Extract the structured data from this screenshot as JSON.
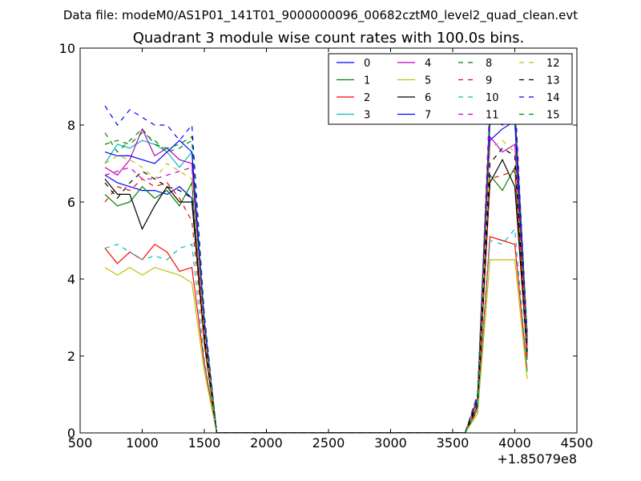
{
  "chart_data": {
    "type": "line",
    "suptitle": "Data file: modeM0/AS1P01_141T01_9000000096_00682cztM0_level2_quad_clean.evt",
    "title": "Quadrant 3 module wise count rates with 100.0s bins.",
    "xlabel": "",
    "ylabel": "",
    "x_offset_label": "+1.85079e8",
    "xlim": [
      500,
      4500
    ],
    "ylim": [
      0,
      10
    ],
    "xticks": [
      500,
      1000,
      1500,
      2000,
      2500,
      3000,
      3500,
      4000,
      4500
    ],
    "yticks": [
      0,
      2,
      4,
      6,
      8,
      10
    ],
    "x": [
      700,
      800,
      900,
      1000,
      1100,
      1200,
      1300,
      1400,
      1500,
      1600,
      1700,
      1800,
      1900,
      2000,
      2100,
      2200,
      2300,
      2400,
      2500,
      2600,
      2700,
      2800,
      2900,
      3000,
      3100,
      3200,
      3300,
      3400,
      3500,
      3600,
      3700,
      3800,
      3900,
      4000,
      4100
    ],
    "legend": {
      "location": "upper right",
      "columns": 4
    },
    "series": [
      {
        "name": "0",
        "color": "#0000ff",
        "dash": "solid",
        "values": [
          6.7,
          6.5,
          6.4,
          6.3,
          6.3,
          6.2,
          6.4,
          6.1,
          2.5,
          0,
          0,
          0,
          0,
          0,
          0,
          0,
          0,
          0,
          0,
          0,
          0,
          0,
          0,
          0,
          0,
          0,
          0,
          0,
          0,
          0,
          0.8,
          7.6,
          7.9,
          8.1,
          2.1
        ]
      },
      {
        "name": "1",
        "color": "#008000",
        "dash": "solid",
        "values": [
          6.2,
          5.9,
          6.0,
          6.4,
          6.1,
          6.3,
          5.9,
          6.5,
          2.3,
          0,
          0,
          0,
          0,
          0,
          0,
          0,
          0,
          0,
          0,
          0,
          0,
          0,
          0,
          0,
          0,
          0,
          0,
          0,
          0,
          0,
          0.6,
          6.7,
          6.3,
          6.9,
          1.9
        ]
      },
      {
        "name": "2",
        "color": "#ff0000",
        "dash": "solid",
        "values": [
          4.8,
          4.4,
          4.7,
          4.5,
          4.9,
          4.7,
          4.2,
          4.3,
          1.8,
          0,
          0,
          0,
          0,
          0,
          0,
          0,
          0,
          0,
          0,
          0,
          0,
          0,
          0,
          0,
          0,
          0,
          0,
          0,
          0,
          0,
          0.6,
          5.1,
          5.0,
          4.9,
          1.6
        ]
      },
      {
        "name": "3",
        "color": "#00bfbf",
        "dash": "solid",
        "values": [
          7.0,
          7.5,
          7.4,
          7.6,
          7.5,
          7.3,
          6.9,
          7.3,
          2.9,
          0,
          0,
          0,
          0,
          0,
          0,
          0,
          0,
          0,
          0,
          0,
          0,
          0,
          0,
          0,
          0,
          0,
          0,
          0,
          0,
          0,
          0.9,
          8.0,
          8.2,
          8.4,
          2.4
        ]
      },
      {
        "name": "4",
        "color": "#bf00bf",
        "dash": "solid",
        "values": [
          6.9,
          6.7,
          7.1,
          7.9,
          7.2,
          7.4,
          7.1,
          7.0,
          2.8,
          0,
          0,
          0,
          0,
          0,
          0,
          0,
          0,
          0,
          0,
          0,
          0,
          0,
          0,
          0,
          0,
          0,
          0,
          0,
          0,
          0,
          0.9,
          7.7,
          7.3,
          7.5,
          2.2
        ]
      },
      {
        "name": "5",
        "color": "#bfbf00",
        "dash": "solid",
        "values": [
          4.3,
          4.1,
          4.3,
          4.1,
          4.3,
          4.2,
          4.1,
          3.9,
          1.6,
          0,
          0,
          0,
          0,
          0,
          0,
          0,
          0,
          0,
          0,
          0,
          0,
          0,
          0,
          0,
          0,
          0,
          0,
          0,
          0,
          0,
          0.5,
          4.5,
          4.5,
          4.5,
          1.4
        ]
      },
      {
        "name": "6",
        "color": "#000000",
        "dash": "solid",
        "values": [
          6.6,
          6.2,
          6.2,
          5.3,
          5.9,
          6.4,
          6.0,
          6.0,
          2.4,
          0,
          0,
          0,
          0,
          0,
          0,
          0,
          0,
          0,
          0,
          0,
          0,
          0,
          0,
          0,
          0,
          0,
          0,
          0,
          0,
          0,
          0.7,
          6.5,
          7.1,
          6.4,
          2.0
        ]
      },
      {
        "name": "7",
        "color": "#0000ff",
        "dash": "solid",
        "values": [
          7.3,
          7.2,
          7.2,
          7.1,
          7.0,
          7.3,
          7.6,
          7.3,
          2.9,
          0,
          0,
          0,
          0,
          0,
          0,
          0,
          0,
          0,
          0,
          0,
          0,
          0,
          0,
          0,
          0,
          0,
          0,
          0,
          0,
          0,
          0.9,
          8.2,
          8.0,
          8.3,
          2.4
        ]
      },
      {
        "name": "8",
        "color": "#008000",
        "dash": "dashed",
        "values": [
          7.8,
          7.3,
          7.6,
          7.9,
          7.5,
          7.4,
          7.5,
          7.7,
          3.0,
          0,
          0,
          0,
          0,
          0,
          0,
          0,
          0,
          0,
          0,
          0,
          0,
          0,
          0,
          0,
          0,
          0,
          0,
          0,
          0,
          0,
          1.0,
          8.3,
          8.1,
          8.6,
          2.5
        ]
      },
      {
        "name": "9",
        "color": "#ff0000",
        "dash": "dashed",
        "values": [
          6.0,
          6.4,
          6.3,
          6.6,
          6.4,
          6.5,
          6.1,
          5.5,
          2.3,
          0,
          0,
          0,
          0,
          0,
          0,
          0,
          0,
          0,
          0,
          0,
          0,
          0,
          0,
          0,
          0,
          0,
          0,
          0,
          0,
          0,
          0.7,
          6.6,
          6.7,
          6.8,
          2.0
        ]
      },
      {
        "name": "10",
        "color": "#00bfbf",
        "dash": "dashed",
        "values": [
          4.8,
          4.9,
          4.7,
          4.5,
          4.6,
          4.5,
          4.8,
          4.9,
          1.9,
          0,
          0,
          0,
          0,
          0,
          0,
          0,
          0,
          0,
          0,
          0,
          0,
          0,
          0,
          0,
          0,
          0,
          0,
          0,
          0,
          0,
          0.6,
          5.0,
          4.9,
          5.3,
          1.6
        ]
      },
      {
        "name": "11",
        "color": "#bf00bf",
        "dash": "dashed",
        "values": [
          6.7,
          6.8,
          6.9,
          6.6,
          6.6,
          6.7,
          6.8,
          6.9,
          2.7,
          0,
          0,
          0,
          0,
          0,
          0,
          0,
          0,
          0,
          0,
          0,
          0,
          0,
          0,
          0,
          0,
          0,
          0,
          0,
          0,
          0,
          0.9,
          8.8,
          9.1,
          8.9,
          2.3
        ]
      },
      {
        "name": "12",
        "color": "#bfbf00",
        "dash": "dashed",
        "values": [
          7.0,
          7.2,
          7.1,
          6.9,
          6.6,
          7.0,
          6.8,
          6.6,
          2.6,
          0,
          0,
          0,
          0,
          0,
          0,
          0,
          0,
          0,
          0,
          0,
          0,
          0,
          0,
          0,
          0,
          0,
          0,
          0,
          0,
          0,
          0.8,
          7.4,
          7.6,
          7.3,
          2.2
        ]
      },
      {
        "name": "13",
        "color": "#000000",
        "dash": "dashed",
        "values": [
          6.5,
          6.1,
          6.5,
          6.8,
          6.6,
          6.4,
          6.3,
          6.1,
          2.5,
          0,
          0,
          0,
          0,
          0,
          0,
          0,
          0,
          0,
          0,
          0,
          0,
          0,
          0,
          0,
          0,
          0,
          0,
          0,
          0,
          0,
          0.8,
          7.0,
          7.4,
          7.2,
          2.1
        ]
      },
      {
        "name": "14",
        "color": "#0000ff",
        "dash": "dashed",
        "values": [
          8.5,
          8.0,
          8.4,
          8.2,
          8.0,
          8.0,
          7.6,
          8.0,
          3.1,
          0,
          0,
          0,
          0,
          0,
          0,
          0,
          0,
          0,
          0,
          0,
          0,
          0,
          0,
          0,
          0,
          0,
          0,
          0,
          0,
          0,
          1.0,
          8.4,
          8.2,
          8.5,
          2.6
        ]
      },
      {
        "name": "15",
        "color": "#008000",
        "dash": "dashed",
        "values": [
          7.5,
          7.6,
          7.5,
          7.8,
          7.6,
          7.3,
          7.4,
          7.6,
          3.0,
          0,
          0,
          0,
          0,
          0,
          0,
          0,
          0,
          0,
          0,
          0,
          0,
          0,
          0,
          0,
          0,
          0,
          0,
          0,
          0,
          0,
          1.0,
          8.5,
          8.3,
          8.5,
          2.5
        ]
      }
    ]
  }
}
